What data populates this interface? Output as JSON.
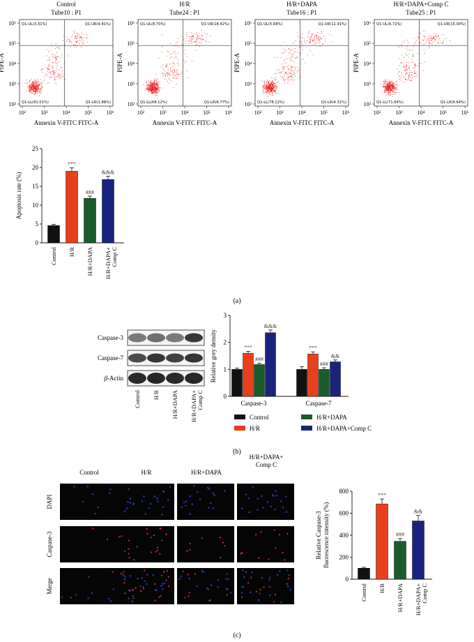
{
  "flow": {
    "xlabel": "Annexin V-FITC FITC-A",
    "ylabel": "PIPE-A",
    "ticks_x": [
      "10²",
      "10³",
      "10⁴",
      "10⁵",
      "10⁶"
    ],
    "ticks_y": [
      "10²",
      "10³",
      "10⁴",
      "10⁵",
      "10⁶"
    ],
    "panels": [
      {
        "title1": "Control",
        "title2": "Tube10 : P1",
        "ul": "Q1-UL(3.31%)",
        "ur": "Q1-UR(4.81%)",
        "ll": "Q1-LL(91.01%)",
        "lr": "Q1-LR(1.88%)"
      },
      {
        "title1": "H/R",
        "title2": "Tube24 : P1",
        "ul": "Q1-UL(8.70%)",
        "ur": "Q1-UR(18.42%)",
        "ll": "Q1-LL(68.12%)",
        "lr": "Q1-LR(6.77%)"
      },
      {
        "title1": "H/R+DAPA",
        "title2": "Tube16 : P1",
        "ul": "Q1-UL(5.68%)",
        "ur": "Q1-UR(11.91%)",
        "ll": "Q1-LL(78.12%)",
        "lr": "Q1-LR(4.31%)"
      },
      {
        "title1": "H/R+DAPA+Comp C",
        "title2": "Tube25 : P1",
        "ul": "Q1-UL(6.72%)",
        "ur": "Q1-UR(15.00%)",
        "ll": "Q1-LL(71.64%)",
        "lr": "Q1-LR(6.64%)"
      }
    ]
  },
  "western": {
    "rows": [
      "Caspase-3",
      "Caspase-7",
      "β-Actin"
    ],
    "lanes": [
      "Control",
      "H/R",
      "H/R+DAPA",
      "H/R+DAPA+\nComp C"
    ]
  },
  "if_images": {
    "cols": [
      "Control",
      "H/R",
      "H/R+DAPA",
      "H/R+DAPA+\nComp C"
    ],
    "rows": [
      "DAPI",
      "Caspase-3",
      "Merge"
    ]
  },
  "labels": {
    "a": "(a)",
    "b": "(b)",
    "c": "(c)"
  },
  "colors": {
    "Control": "#111111",
    "H/R": "#e8401c",
    "H/R+DAPA": "#1a5c2a",
    "H/R+DAPA+Comp C": "#1a237e",
    "dots": "#e8201c"
  },
  "chart_data": [
    {
      "type": "bar",
      "categories": [
        "Control",
        "H/R",
        "H/R+DAPA",
        "H/R+DAPA+\nComp C"
      ],
      "values": [
        4.6,
        19.0,
        11.8,
        16.8
      ],
      "errors": [
        0.3,
        0.9,
        0.6,
        0.9
      ],
      "annotations": [
        "",
        "***",
        "###",
        "&&&"
      ],
      "ylabel": "Apoptosis rate (%)",
      "ylim": [
        0,
        25
      ],
      "yticks": [
        0,
        5,
        10,
        15,
        20,
        25
      ]
    },
    {
      "type": "bar",
      "categories": [
        "Caspase-3",
        "Caspase-7"
      ],
      "series": [
        {
          "name": "Control",
          "values": [
            1.0,
            1.0
          ],
          "errors": [
            0.05,
            0.1
          ],
          "annotations": [
            "",
            ""
          ]
        },
        {
          "name": "H/R",
          "values": [
            1.6,
            1.57
          ],
          "errors": [
            0.07,
            0.08
          ],
          "annotations": [
            "***",
            "***"
          ]
        },
        {
          "name": "H/R+DAPA",
          "values": [
            1.18,
            1.0
          ],
          "errors": [
            0.05,
            0.06
          ],
          "annotations": [
            "###",
            "###"
          ]
        },
        {
          "name": "H/R+DAPA+Comp C",
          "values": [
            2.36,
            1.28
          ],
          "errors": [
            0.1,
            0.07
          ],
          "annotations": [
            "&&&",
            "&&"
          ]
        }
      ],
      "ylabel": "Relative grey density",
      "ylim": [
        0,
        3
      ],
      "yticks": [
        0,
        1,
        2,
        3
      ],
      "legend": "bottom"
    },
    {
      "type": "bar",
      "categories": [
        "Control",
        "H/R",
        "H/R+DAPA",
        "H/R+DAPA+\nComp C"
      ],
      "values": [
        100,
        685,
        345,
        530
      ],
      "errors": [
        8,
        45,
        25,
        50
      ],
      "annotations": [
        "",
        "***",
        "###",
        "&&"
      ],
      "ylabel": "Relative Caspase-3\nfluorescence intensity (%)",
      "ylim": [
        0,
        800
      ],
      "yticks": [
        0,
        200,
        400,
        600,
        800
      ]
    }
  ]
}
